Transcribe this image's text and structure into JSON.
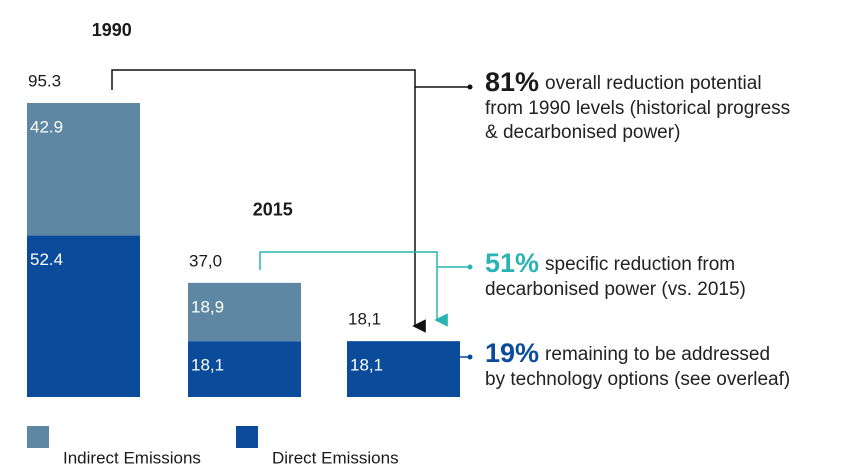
{
  "chart_data": {
    "type": "stacked_bar",
    "categories": [
      "1990",
      "2015",
      null
    ],
    "series": [
      {
        "name": "Indirect Emissions",
        "color": "#5e87a4",
        "values": [
          42.9,
          18.9,
          null
        ],
        "value_labels": [
          "42.9",
          "18,9",
          null
        ]
      },
      {
        "name": "Direct Emissions",
        "color": "#0a4b9b",
        "values": [
          52.4,
          18.1,
          18.1
        ],
        "value_labels": [
          "52.4",
          "18,1",
          "18,1"
        ]
      }
    ],
    "totals": [
      95.3,
      37.0,
      18.1
    ],
    "total_labels": [
      "95.3",
      "37,0",
      "18,1"
    ],
    "annotations": [
      {
        "pct": "81%",
        "color": "#1a1a1a",
        "lines": [
          "overall reduction potential",
          "from 1990 levels (historical progress",
          "& decarbonised power)"
        ]
      },
      {
        "pct": "51%",
        "color": "#2ab3b3",
        "lines": [
          "specific reduction from",
          "decarbonised power (vs. 2015)"
        ]
      },
      {
        "pct": "19%",
        "color": "#0a4b9b",
        "lines": [
          "remaining to be addressed",
          "by technology options (see overleaf)"
        ]
      }
    ]
  }
}
